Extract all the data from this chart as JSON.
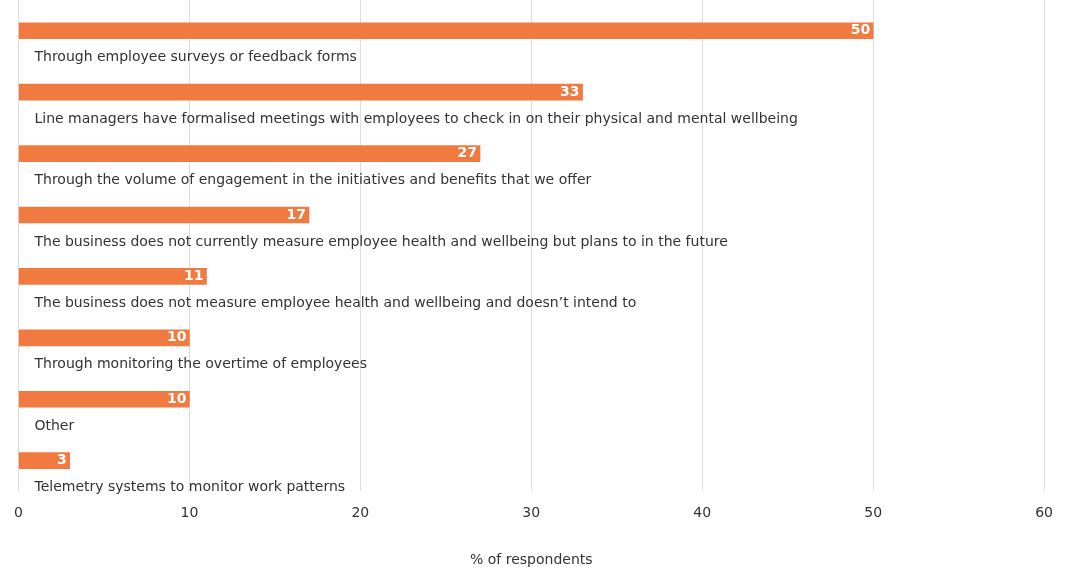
{
  "chart_data": {
    "type": "bar",
    "orientation": "horizontal",
    "xlabel": "% of respondents",
    "categories": [
      "Through employee surveys or feedback forms",
      "Line managers have formalised meetings with employees to check in on their physical and mental wellbeing",
      "Through the volume of engagement in the initiatives and benefits that we offer",
      "The business does not currently measure employee health and wellbeing but plans to in the future",
      "The business does not measure employee health and wellbeing and doesn’t intend to",
      "Through monitoring the overtime of employees",
      "Other",
      "Telemetry systems to monitor work patterns"
    ],
    "values": [
      50,
      33,
      27,
      17,
      11,
      10,
      10,
      3
    ],
    "color": "#f07a40",
    "xlim": [
      0,
      60
    ],
    "xticks": [
      0,
      10,
      20,
      30,
      40,
      50,
      60
    ],
    "grid": "x",
    "legend": false,
    "data_labels": true
  }
}
